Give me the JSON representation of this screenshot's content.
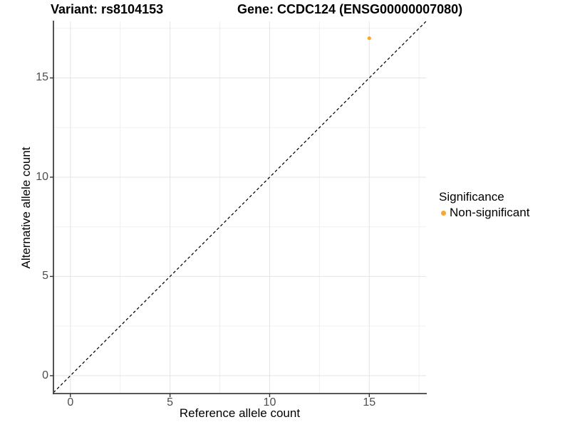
{
  "titles": {
    "variant": "Variant: rs8104153",
    "gene": "Gene: CCDC124 (ENSG00000007080)"
  },
  "axes": {
    "x": {
      "label": "Reference allele count",
      "ticks": [
        "0",
        "5",
        "10",
        "15"
      ]
    },
    "y": {
      "label": "Alternative allele count",
      "ticks": [
        "0",
        "5",
        "10",
        "15"
      ]
    }
  },
  "legend": {
    "title": "Significance",
    "items": [
      {
        "label": "Non-significant",
        "color": "#FAA628",
        "marker": "dot-icon"
      }
    ]
  },
  "colors": {
    "background": "#FFFFFF",
    "grid_major": "#E4E4E4",
    "grid_minor": "#F0F0F0",
    "axis_line": "#404040",
    "tick_mark": "#333333",
    "tick_label": "#4D4D4D",
    "text": "#000000",
    "point": "#FAA628",
    "identity_line": "#000000"
  },
  "chart_data": {
    "type": "scatter",
    "title": "Variant: rs8104153 | Gene: CCDC124 (ENSG00000007080)",
    "xlabel": "Reference allele count",
    "ylabel": "Alternative allele count",
    "xlim": [
      -0.85,
      17.85
    ],
    "ylim": [
      -0.9,
      17.85
    ],
    "x_ticks": [
      0,
      5,
      10,
      15
    ],
    "y_ticks": [
      0,
      5,
      10,
      15
    ],
    "minor_grid_step": 2.5,
    "grid": "major+minor",
    "legend_position": "right",
    "series": [
      {
        "name": "Non-significant",
        "color": "#FAA628",
        "marker_radius_px": 2.6,
        "points": [
          {
            "x": 15,
            "y": 17
          }
        ]
      }
    ],
    "reference_line": {
      "type": "identity y=x",
      "style": "dashed",
      "color": "#000000",
      "x1": -0.85,
      "y1": -0.85,
      "x2": 17.85,
      "y2": 17.85
    }
  }
}
